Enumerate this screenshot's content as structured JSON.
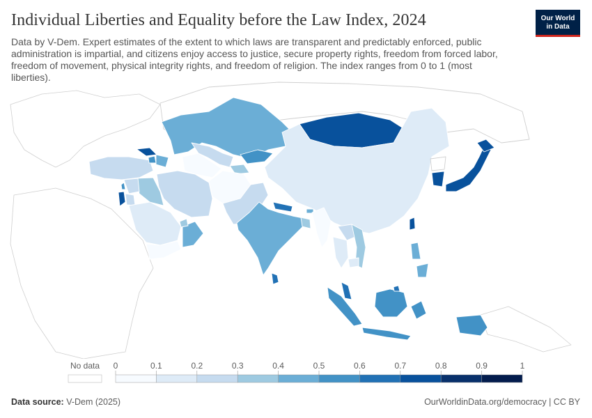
{
  "title": "Individual Liberties and Equality before the Law Index, 2024",
  "subtitle": "Data by V-Dem. Expert estimates of the extent to which laws are transparent and predictably enforced, public administration is impartial, and citizens enjoy access to justice, secure property rights, freedom from forced labor, freedom of movement, physical integrity rights, and freedom of religion. The index ranges from 0 to 1 (most liberties).",
  "logo": {
    "line1": "Our World",
    "line2": "in Data"
  },
  "legend": {
    "no_data_label": "No data",
    "ticks": [
      "0",
      "0.1",
      "0.2",
      "0.3",
      "0.4",
      "0.5",
      "0.6",
      "0.7",
      "0.8",
      "0.9",
      "1"
    ],
    "colors": [
      "#f7fbff",
      "#deebf7",
      "#c6dbef",
      "#9ecae1",
      "#6baed6",
      "#4292c6",
      "#2171b5",
      "#08519c",
      "#08306b",
      "#031c4d"
    ]
  },
  "footer": {
    "source_label": "Data source:",
    "source_value": "V-Dem (2025)",
    "url": "OurWorldinData.org/democracy | CC BY"
  },
  "colors": {
    "no_data_fill": "#ffffff",
    "border": "#c8c8c8",
    "title": "#333333",
    "logo_bg": "#002147",
    "logo_accent": "#ce261e"
  }
}
